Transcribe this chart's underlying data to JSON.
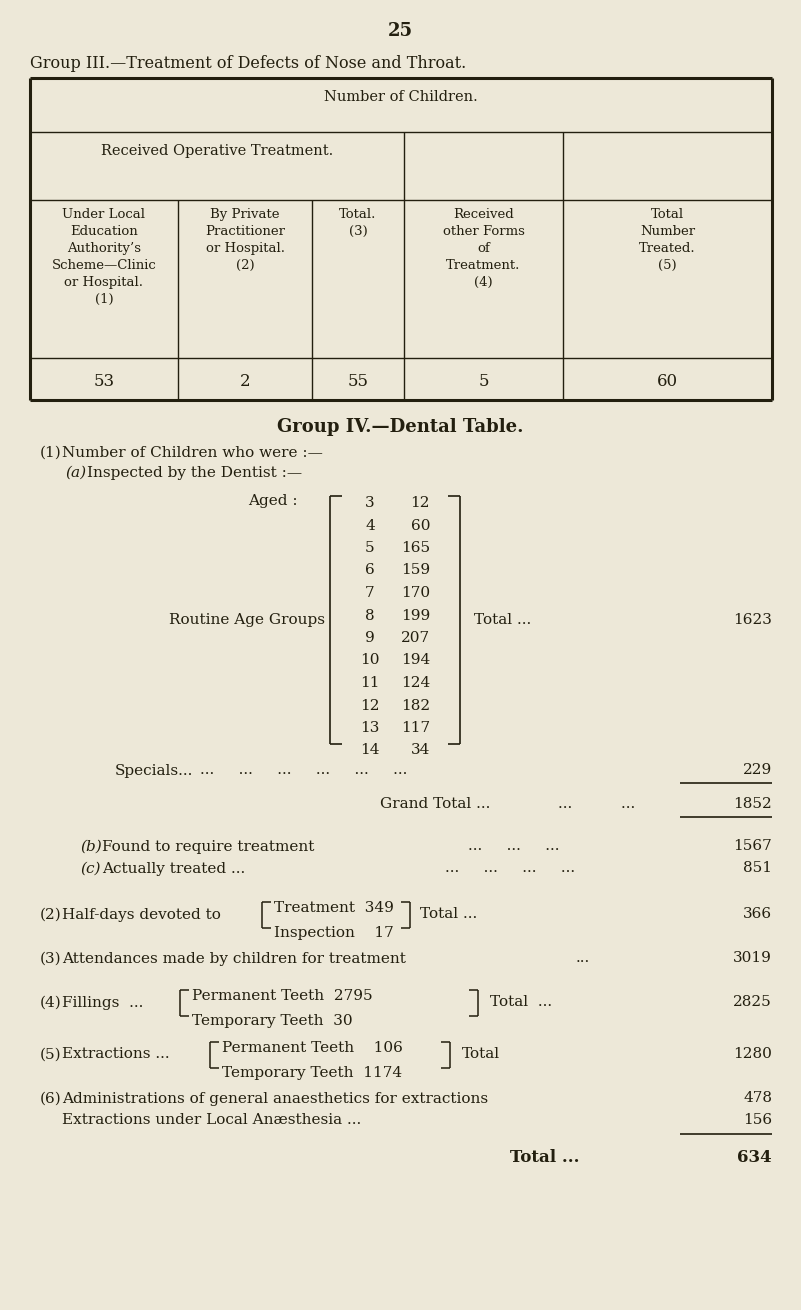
{
  "bg_color": "#ede8d8",
  "text_color": "#231f0f",
  "page_number": "25",
  "group3_title": "Group III.—Treatment of Defects of Nose and Throat.",
  "table1_header1": "Number of Children.",
  "table1_header2": "Received Operative Treatment.",
  "col_headers": [
    [
      "Under Local",
      "Education",
      "Authority’s",
      "Scheme—Clinic",
      "or Hospital.",
      "(1)"
    ],
    [
      "By Private",
      "Practitioner",
      "or Hospital.",
      "(2)"
    ],
    [
      "Total.",
      "(3)"
    ],
    [
      "Received",
      "other Forms",
      "of",
      "Treatment.",
      "(4)"
    ],
    [
      "Total",
      "Number",
      "Treated.",
      "(5)"
    ]
  ],
  "data_row": [
    "53",
    "2",
    "55",
    "5",
    "60"
  ],
  "group4_title": "Group IV.—Dental Table.",
  "section1_label": "(1)",
  "section1_text": "Number of Children who were :—",
  "section1a_label": "(a)",
  "section1a_text": "Inspected by the Dentist :—",
  "aged_label": "Aged :",
  "routine_label": "Routine Age Groups",
  "age_data": [
    [
      "3",
      "12"
    ],
    [
      "4",
      "60"
    ],
    [
      "5",
      "165"
    ],
    [
      "6",
      "159"
    ],
    [
      "7",
      "170"
    ],
    [
      "8",
      "199"
    ],
    [
      "9",
      "207"
    ],
    [
      "10",
      "194"
    ],
    [
      "11",
      "124"
    ],
    [
      "12",
      "182"
    ],
    [
      "13",
      "117"
    ],
    [
      "14",
      "34"
    ]
  ],
  "routine_total_label": "Total ...",
  "routine_total": "1623",
  "specials_label": "Specials...",
  "specials_value": "229",
  "grand_total_label": "Grand Total ...",
  "grand_total_value": "1852",
  "sb_label": "(b)",
  "sb_text": "Found to require treatment",
  "sb_value": "1567",
  "sc_label": "(c)",
  "sc_text": "Actually treated ...",
  "sc_value": "851",
  "s2_label": "(2)",
  "s2_text": "Half-days devoted to",
  "s2_top": "Treatment  349",
  "s2_bot": "Inspection    17",
  "s2_total": "366",
  "s3_label": "(3)",
  "s3_text": "Attendances made by children for treatment",
  "s3_value": "3019",
  "s4_label": "(4)",
  "s4_text": "Fillings  ...",
  "s4_top": "Permanent Teeth  2795",
  "s4_bot": "Temporary Teeth  30",
  "s4_total": "2825",
  "s5_label": "(5)",
  "s5_text": "Extractions ...",
  "s5_top": "Permanent Teeth    106",
  "s5_bot": "Temporary Teeth  1174",
  "s5_total": "1280",
  "s6_label": "(6)",
  "s6_text": "Administrations of general anaesthetics for extractions",
  "s6_value": "478",
  "s6b_text": "Extractions under Local Anæsthesia ...",
  "s6b_value": "156",
  "final_total_label": "Total ...",
  "final_total": "634"
}
